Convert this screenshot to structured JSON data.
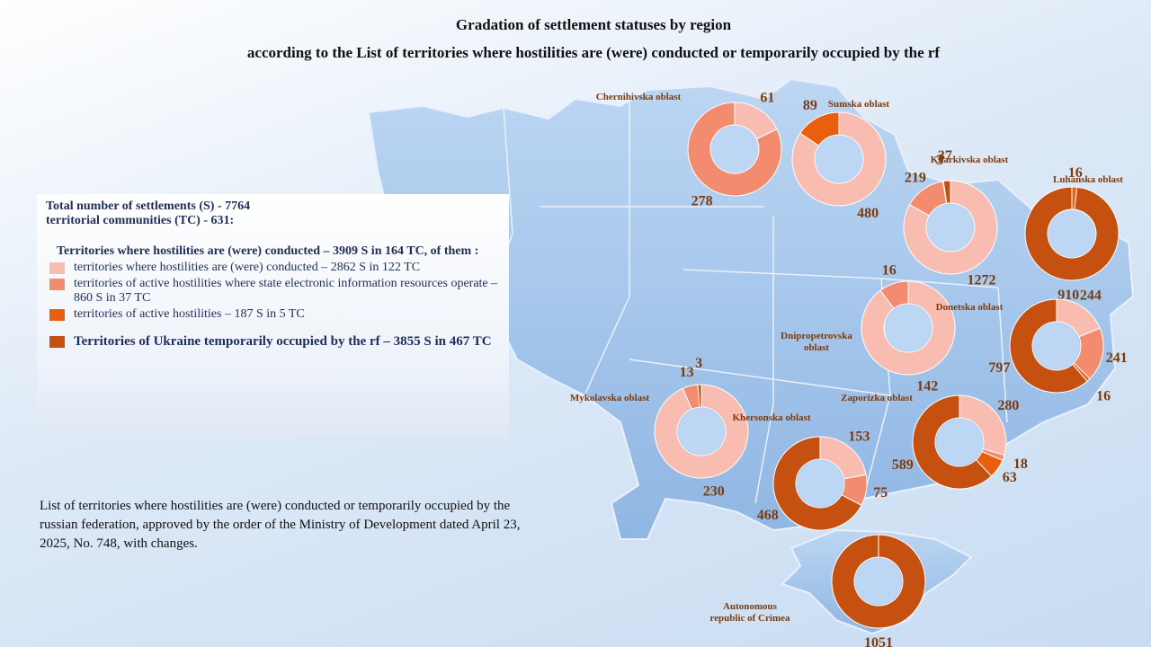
{
  "title": "Gradation of settlement statuses by region",
  "subtitle": "according to the List of territories where hostilities are (were) conducted or temporarily occupied by the rf",
  "info": {
    "total": "Total number of settlements (S) - 7764",
    "communities": "territorial communities  (TC) - 631:",
    "hostilities": "Territories where hostilities are (were) conducted –  3909 S in 164 TC, of them :",
    "legend": [
      {
        "label": "territories where hostilities are (were) conducted – 2862 S  in 122 TC",
        "color": "#f9bcb0"
      },
      {
        "label": "territories of active hostilities where state electronic information resources operate  – 860 S in 37 TC",
        "color": "#f38b6f"
      },
      {
        "label": "territories of active hostilities – 187 S in 5 TC",
        "color": "#e8600f"
      },
      {
        "label": "Territories of Ukraine temporarily occupied by the rf – 3855 S in 467 TC",
        "color": "#c55010"
      }
    ]
  },
  "note": "List of territories where hostilities are (were) conducted or temporarily occupied by the russian federation, approved by the order of the Ministry of Development dated April 23, 2025, No. 748, with changes.",
  "chart_data": [
    {
      "type": "donut",
      "title": "Chernihivska oblast",
      "values": [
        61,
        278
      ],
      "colors": [
        "#f9bcb0",
        "#f38b6f"
      ]
    },
    {
      "type": "donut",
      "title": "Sumska oblast",
      "values": [
        480,
        89
      ],
      "colors": [
        "#f9bcb0",
        "#e8600f"
      ]
    },
    {
      "type": "donut",
      "title": "Kharkivska oblast",
      "values": [
        1272,
        219,
        3,
        37
      ],
      "colors": [
        "#f9bcb0",
        "#f38b6f",
        "#e8600f",
        "#c55010"
      ]
    },
    {
      "type": "donut",
      "title": "Luhanska oblast",
      "values": [
        16,
        910
      ],
      "colors": [
        "#e8600f",
        "#c55010"
      ]
    },
    {
      "type": "donut",
      "title": "Donetska oblast",
      "values": [
        244,
        241,
        16,
        797
      ],
      "colors": [
        "#f9bcb0",
        "#f38b6f",
        "#e8600f",
        "#c55010"
      ]
    },
    {
      "type": "donut",
      "title": "Dnipropetrovska oblast",
      "values": [
        142,
        16
      ],
      "colors": [
        "#f9bcb0",
        "#f38b6f"
      ]
    },
    {
      "type": "donut",
      "title": "Zaporizka oblast",
      "values": [
        280,
        18,
        63,
        589
      ],
      "colors": [
        "#f9bcb0",
        "#f38b6f",
        "#e8600f",
        "#c55010"
      ]
    },
    {
      "type": "donut",
      "title": "Mykolavska oblast",
      "values": [
        230,
        13,
        3
      ],
      "colors": [
        "#f9bcb0",
        "#f38b6f",
        "#c55010"
      ]
    },
    {
      "type": "donut",
      "title": "Khersonska oblast",
      "values": [
        153,
        75,
        468
      ],
      "colors": [
        "#f9bcb0",
        "#f38b6f",
        "#c55010"
      ]
    },
    {
      "type": "donut",
      "title": "Autonomous republic of  Crimea",
      "values": [
        1051
      ],
      "colors": [
        "#c55010"
      ]
    }
  ]
}
